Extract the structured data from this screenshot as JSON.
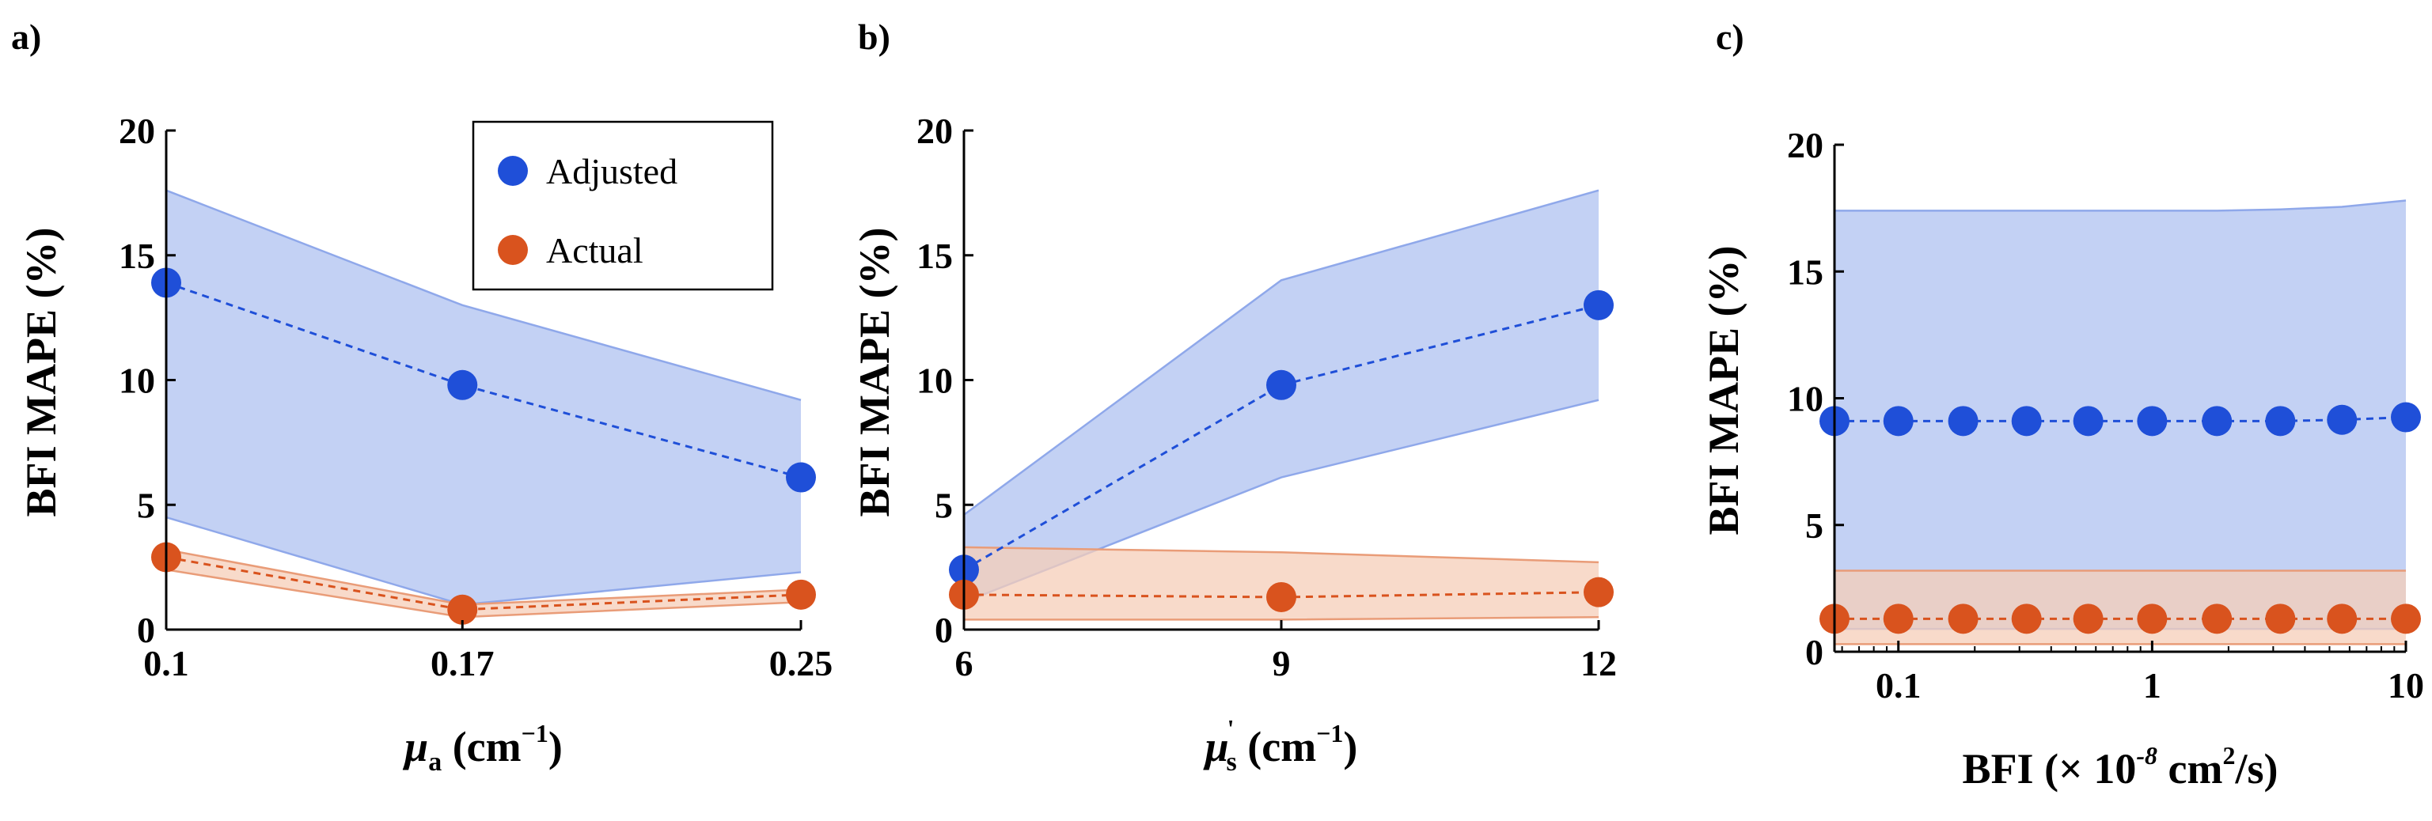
{
  "colors": {
    "adjusted": "#1f4fd8",
    "adjusted_band": "#b9c9f2",
    "adjusted_band_edge": "#8fa8ea",
    "actual": "#d9531e",
    "actual_band": "#f5cdb8",
    "actual_band_edge": "#e99c78"
  },
  "chart_data": [
    {
      "type": "line",
      "panel_label": "a)",
      "xlabel": {
        "symbol": "μ",
        "sub": "a",
        "unit": " (cm",
        "exp": "−1",
        "close": ")"
      },
      "ylabel": "BFI MAPE (%)",
      "xscale": "linear",
      "x": [
        0.1,
        0.17,
        0.25
      ],
      "xticks": [
        "0.1",
        "0.17",
        "0.25"
      ],
      "xlim": [
        0.1,
        0.25
      ],
      "ylim": [
        0,
        20
      ],
      "yticks": [
        0,
        5,
        10,
        15,
        20
      ],
      "legend": {
        "placement": "top-right",
        "entries": [
          "Adjusted",
          "Actual"
        ]
      },
      "series": [
        {
          "name": "Adjusted",
          "values": [
            13.9,
            9.8,
            6.1
          ],
          "band_low": [
            4.5,
            1.0,
            2.3
          ],
          "band_high": [
            17.6,
            13.0,
            9.2
          ]
        },
        {
          "name": "Actual",
          "values": [
            2.9,
            0.8,
            1.4
          ],
          "band_low": [
            2.4,
            0.5,
            1.1
          ],
          "band_high": [
            3.2,
            1.0,
            1.6
          ]
        }
      ]
    },
    {
      "type": "line",
      "panel_label": "b)",
      "xlabel": {
        "symbol": "μ",
        "sub": "s",
        "sup": "'",
        "unit": " (cm",
        "exp": "−1",
        "close": ")"
      },
      "ylabel": "BFI MAPE (%)",
      "xscale": "linear",
      "x": [
        6,
        9,
        12
      ],
      "xticks": [
        "6",
        "9",
        "12"
      ],
      "xlim": [
        6,
        12
      ],
      "ylim": [
        0,
        20
      ],
      "yticks": [
        0,
        5,
        10,
        15,
        20
      ],
      "series": [
        {
          "name": "Adjusted",
          "values": [
            2.4,
            9.8,
            13.0
          ],
          "band_low": [
            1.1,
            6.1,
            9.2
          ],
          "band_high": [
            4.6,
            14.0,
            17.6
          ]
        },
        {
          "name": "Actual",
          "values": [
            1.4,
            1.3,
            1.5
          ],
          "band_low": [
            0.4,
            0.4,
            0.5
          ],
          "band_high": [
            3.3,
            3.1,
            2.7
          ]
        }
      ]
    },
    {
      "type": "line",
      "panel_label": "c)",
      "xlabel": {
        "pre": "BFI (× 10",
        "exp": "-8",
        "mid": " cm",
        "exp2": "2",
        "post": "/s)"
      },
      "ylabel": "BFI MAPE (%)",
      "xscale": "log",
      "x": [
        0.056,
        0.1,
        0.18,
        0.32,
        0.56,
        1,
        1.8,
        3.2,
        5.6,
        10
      ],
      "xticks": [
        "0.1",
        "1",
        "10"
      ],
      "xtick_values": [
        0.1,
        1,
        10
      ],
      "xlim": [
        0.056,
        10
      ],
      "ylim": [
        0,
        20
      ],
      "yticks": [
        0,
        5,
        10,
        15,
        20
      ],
      "series": [
        {
          "name": "Adjusted",
          "values": [
            9.1,
            9.1,
            9.1,
            9.1,
            9.1,
            9.1,
            9.1,
            9.1,
            9.15,
            9.25
          ],
          "band_low": [
            0.9,
            0.9,
            0.9,
            0.9,
            0.9,
            0.9,
            0.9,
            0.9,
            0.9,
            0.9
          ],
          "band_high": [
            17.4,
            17.4,
            17.4,
            17.4,
            17.4,
            17.4,
            17.4,
            17.45,
            17.55,
            17.8
          ]
        },
        {
          "name": "Actual",
          "values": [
            1.3,
            1.3,
            1.3,
            1.3,
            1.3,
            1.3,
            1.3,
            1.3,
            1.3,
            1.3
          ],
          "band_low": [
            0.3,
            0.3,
            0.3,
            0.3,
            0.3,
            0.3,
            0.3,
            0.3,
            0.3,
            0.3
          ],
          "band_high": [
            3.2,
            3.2,
            3.2,
            3.2,
            3.2,
            3.2,
            3.2,
            3.2,
            3.2,
            3.2
          ]
        }
      ]
    }
  ]
}
